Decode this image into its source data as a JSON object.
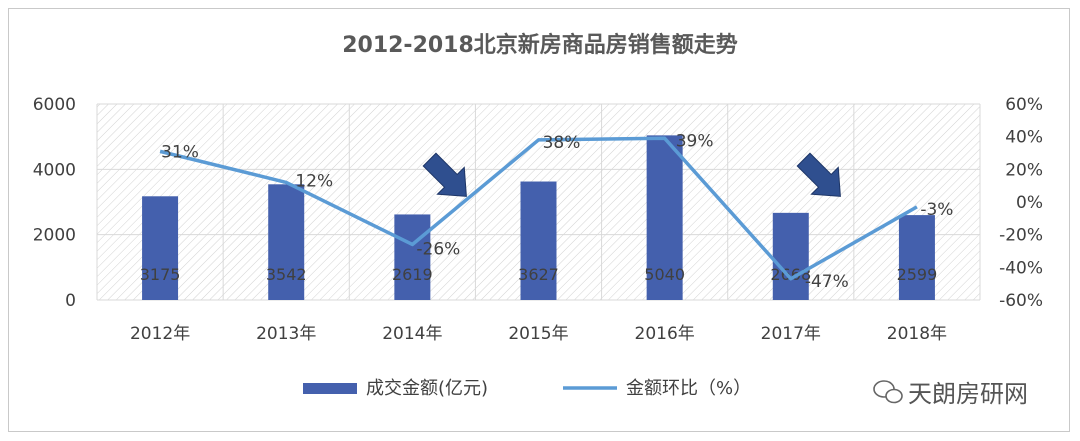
{
  "chart_data": {
    "type": "bar+line",
    "title": "2012-2018北京新房商品房销售额走势",
    "categories": [
      "2012年",
      "2013年",
      "2014年",
      "2015年",
      "2016年",
      "2017年",
      "2018年"
    ],
    "series": [
      {
        "name": "成交金额(亿元)",
        "type": "bar",
        "axis": "left",
        "values": [
          3175,
          3542,
          2619,
          3627,
          5040,
          2668,
          2599
        ],
        "value_labels": [
          "3175",
          "3542",
          "2619",
          "3627",
          "5040",
          "2668",
          "2599"
        ],
        "color": "#4460ad"
      },
      {
        "name": "金额环比（%）",
        "type": "line",
        "axis": "right",
        "values": [
          31,
          12,
          -26,
          38,
          39,
          -47,
          -3
        ],
        "value_labels": [
          "31%",
          "12%",
          "-26%",
          "38%",
          "39%",
          "-47%",
          "-3%"
        ],
        "color": "#5b9bd5"
      }
    ],
    "y_left": {
      "min": 0,
      "max": 6000,
      "ticks": [
        "0",
        "2000",
        "4000",
        "6000"
      ]
    },
    "y_right": {
      "min": -60,
      "max": 60,
      "ticks": [
        "-60%",
        "-40%",
        "-20%",
        "0%",
        "20%",
        "40%",
        "60%"
      ]
    },
    "grid": true,
    "legend": "bottom",
    "annotation_arrows": [
      "2014年",
      "2017年"
    ]
  },
  "watermark": {
    "text": "天朗房研网",
    "icon": "wechat-icon"
  }
}
